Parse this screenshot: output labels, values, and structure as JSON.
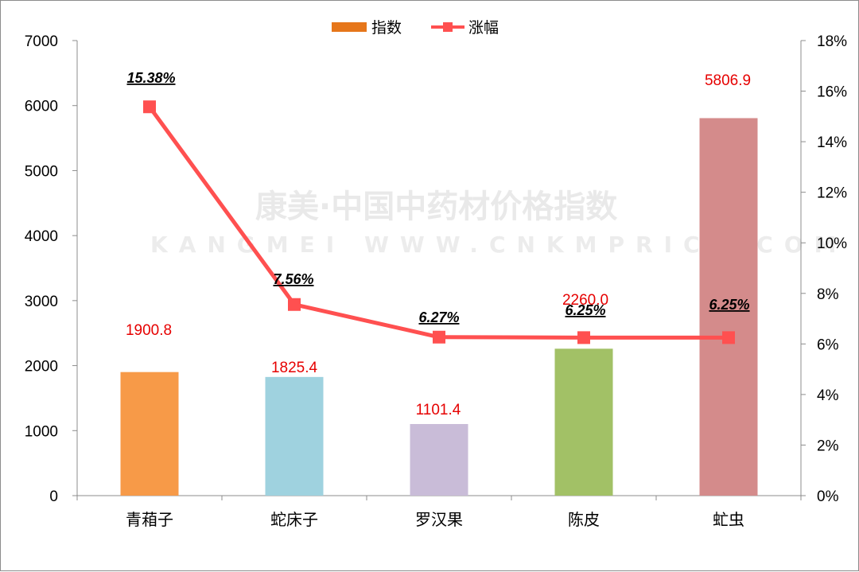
{
  "watermark": {
    "line1": "康美·中国中药材价格指数",
    "line2": "KANGMEI WWW.CNKMPRICE.COM"
  },
  "colors": {
    "line": "#ff5050",
    "bar_label": "#e60000",
    "bars": [
      "#f79a48",
      "#9fd2df",
      "#c9bcd8",
      "#a2c166",
      "#d48b8b"
    ]
  },
  "chart_data": {
    "type": "bar",
    "categories": [
      "青葙子",
      "蛇床子",
      "罗汉果",
      "陈皮",
      "虻虫"
    ],
    "series": [
      {
        "name": "指数",
        "type": "bar",
        "axis": "left",
        "values": [
          1900.8,
          1825.4,
          1101.4,
          2260.0,
          5806.9
        ],
        "labels": [
          "1900.8",
          "1825.4",
          "1101.4",
          "2260.0",
          "5806.9"
        ]
      },
      {
        "name": "涨幅",
        "type": "line",
        "axis": "right",
        "values": [
          15.38,
          7.56,
          6.27,
          6.25,
          6.25
        ],
        "labels": [
          "15.38%",
          "7.56%",
          "6.27%",
          "6.25%",
          "6.25%"
        ]
      }
    ],
    "y_left": {
      "min": 0,
      "max": 7000,
      "ticks": [
        "0",
        "1000",
        "2000",
        "3000",
        "4000",
        "5000",
        "6000",
        "7000"
      ]
    },
    "y_right": {
      "min": 0,
      "max": 18,
      "ticks": [
        "0%",
        "2%",
        "4%",
        "6%",
        "8%",
        "10%",
        "12%",
        "14%",
        "16%",
        "18%"
      ]
    },
    "legend_position": "top-center",
    "grid": false
  }
}
